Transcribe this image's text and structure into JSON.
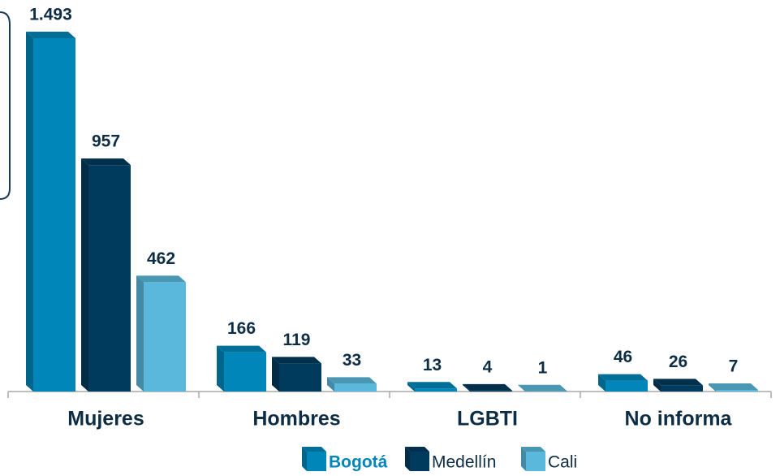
{
  "chart_data": {
    "type": "bar3d",
    "categories": [
      "Mujeres",
      "Hombres",
      "LGBTI",
      "No informa"
    ],
    "series": [
      {
        "name": "Bogotá",
        "color": "#0086b8",
        "values": [
          1493,
          166,
          13,
          46
        ],
        "value_labels": [
          "1.493",
          "166",
          "13",
          "46"
        ]
      },
      {
        "name": "Medellín",
        "color": "#003a5c",
        "values": [
          957,
          119,
          4,
          26
        ],
        "value_labels": [
          "957",
          "119",
          "4",
          "26"
        ]
      },
      {
        "name": "Cali",
        "color": "#5ab8dc",
        "values": [
          462,
          33,
          1,
          7
        ],
        "value_labels": [
          "462",
          "33",
          "1",
          "7"
        ]
      }
    ],
    "legend": "bottom"
  }
}
